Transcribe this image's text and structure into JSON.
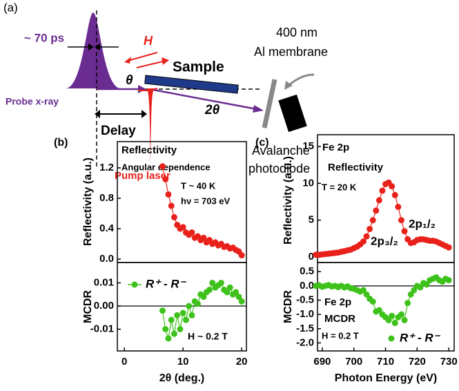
{
  "diagram": {
    "panel_label": "(a)",
    "pulse_width": "~ 70 ps",
    "field": "H",
    "sample": "Sample",
    "membrane_1": "400 nm",
    "membrane_2": "Al membrane",
    "angle": "θ",
    "probe": "Probe x-ray",
    "angle_2": "2θ",
    "delay": "Delay",
    "pump": "Pump laser",
    "detector_1": "Avalanche",
    "detector_2": "photodiode"
  },
  "chart_data": [
    {
      "type": "scatter",
      "panel_label": "(b)",
      "y_label": "Reflectivity (a.u.)",
      "annotations": [
        "Reflectivity",
        "Angular dependence",
        "T ~ 40 K",
        "hν = 703 eV"
      ],
      "x": [
        6.5,
        7,
        7.5,
        8,
        8.5,
        9,
        9.5,
        10,
        10.5,
        11,
        11.5,
        12,
        12.5,
        13,
        13.5,
        14,
        14.5,
        15,
        15.5,
        16,
        16.5,
        17,
        17.5,
        18,
        18.5,
        19,
        19.5,
        20
      ],
      "series": [
        {
          "color": "#e8221b",
          "values": [
            1.22,
            1.05,
            0.85,
            0.7,
            0.55,
            0.45,
            0.4,
            0.42,
            0.35,
            0.32,
            0.35,
            0.28,
            0.3,
            0.25,
            0.28,
            0.22,
            0.25,
            0.2,
            0.22,
            0.18,
            0.2,
            0.16,
            0.17,
            0.14,
            0.15,
            0.12,
            0.1,
            0.05
          ]
        }
      ],
      "xlim": [
        -1.2,
        20.8
      ],
      "ylim": [
        -0.045,
        1.545
      ],
      "yticks": [
        {
          "value": 0,
          "label": "0.0"
        },
        0.4,
        0.8,
        1.2
      ]
    },
    {
      "type": "scatter",
      "y_label": "MCDR",
      "x_label": "2θ (deg.)",
      "annotations": [
        "H ~ 0.2 T"
      ],
      "zero_line": true,
      "x": [
        6.5,
        7,
        7.5,
        8,
        8.5,
        9,
        9.5,
        10,
        10.5,
        11,
        11.5,
        12,
        12.5,
        13,
        13.5,
        14,
        14.5,
        15,
        15.5,
        16,
        16.5,
        17,
        17.5,
        18,
        18.5,
        19,
        19.5,
        20
      ],
      "series": [
        {
          "name": "R⁺ - R⁻",
          "color": "#3ec21b",
          "values": [
            -0.002,
            -0.01,
            -0.014,
            -0.006,
            -0.012,
            -0.004,
            -0.01,
            -0.003,
            -0.006,
            0.0,
            -0.004,
            0.002,
            0.001,
            0.005,
            0.004,
            0.006,
            0.007,
            0.01,
            0.008,
            0.009,
            0.01,
            0.007,
            0.006,
            0.008,
            0.005,
            0.006,
            0.004,
            0.002
          ]
        }
      ],
      "xlim": [
        -1.2,
        20.8
      ],
      "ylim": [
        -0.0194,
        0.0188
      ],
      "xticks": [
        0,
        10,
        20
      ],
      "yticks": [
        {
          "value": -0.01,
          "label": "-0.01"
        },
        {
          "value": 0,
          "label": "0.00"
        },
        0.01
      ]
    },
    {
      "type": "scatter",
      "panel_label": "(c)",
      "y_label": "Reflectivity (a.u.)",
      "annotations": [
        "Fe 2p",
        "Reflectivity",
        "T = 20 K",
        "2p₁/₂",
        "2p₃/₂"
      ],
      "x": [
        688,
        689,
        690,
        691,
        692,
        693,
        694,
        695,
        696,
        697,
        698,
        699,
        700,
        701,
        702,
        703,
        704,
        705,
        706,
        707,
        708,
        709,
        710,
        711,
        712,
        713,
        714,
        715,
        716,
        717,
        718,
        719,
        720,
        721,
        722,
        723,
        724,
        725,
        726,
        727,
        728,
        729,
        730
      ],
      "series": [
        {
          "color": "#e8221b",
          "values": [
            0.3,
            0.3,
            0.35,
            0.4,
            0.45,
            0.5,
            0.55,
            0.6,
            0.7,
            0.8,
            0.9,
            1.0,
            1.2,
            1.4,
            1.7,
            2.1,
            2.8,
            3.8,
            5.0,
            6.3,
            7.7,
            9.0,
            9.9,
            10.1,
            9.6,
            8.4,
            6.8,
            5.0,
            3.5,
            2.4,
            1.9,
            2.0,
            2.3,
            2.4,
            2.4,
            2.3,
            2.2,
            2.2,
            2.1,
            1.9,
            1.7,
            1.5,
            1.3
          ]
        }
      ],
      "xlim": [
        688.5,
        731.7
      ],
      "ylim": [
        -0.75,
        16.6
      ],
      "yticks": [
        0,
        5,
        10,
        15
      ]
    },
    {
      "type": "scatter",
      "y_label": "MCDR",
      "x_label": "Photon Energy (eV)",
      "annotations": [
        "Fe 2p",
        "MCDR",
        "H = 0.2 T"
      ],
      "zero_line": true,
      "x": [
        688,
        689,
        690,
        691,
        692,
        693,
        694,
        695,
        696,
        697,
        698,
        699,
        700,
        701,
        702,
        703,
        704,
        705,
        706,
        707,
        708,
        709,
        710,
        711,
        712,
        713,
        714,
        715,
        716,
        717,
        718,
        719,
        720,
        721,
        722,
        723,
        724,
        725,
        726,
        727,
        728,
        729,
        730
      ],
      "series": [
        {
          "name": "R⁺ - R⁻",
          "color": "#3ec21b",
          "values": [
            0.0,
            0.02,
            -0.03,
            0.0,
            0.03,
            -0.02,
            0.0,
            -0.04,
            0.0,
            -0.05,
            -0.02,
            -0.08,
            -0.1,
            -0.15,
            -0.2,
            -0.15,
            -0.3,
            -0.45,
            -0.55,
            -0.9,
            -0.85,
            -1.0,
            -1.1,
            -1.2,
            -1.05,
            -1.3,
            -1.1,
            -1.0,
            -1.2,
            -0.6,
            -0.3,
            -0.15,
            0.0,
            -0.05,
            0.1,
            0.05,
            0.2,
            0.25,
            0.3,
            0.2,
            0.15,
            0.25,
            0.2
          ]
        }
      ],
      "xlim": [
        688.5,
        731.7
      ],
      "ylim": [
        -2.28,
        0.82
      ],
      "xticks": [
        690,
        700,
        710,
        720,
        730
      ],
      "yticks": [
        {
          "value": -2,
          "label": "-2.0"
        },
        -1.5,
        {
          "value": -1,
          "label": "-1.0"
        },
        -0.5,
        {
          "value": 0,
          "label": "0.0"
        },
        0.5
      ]
    }
  ]
}
